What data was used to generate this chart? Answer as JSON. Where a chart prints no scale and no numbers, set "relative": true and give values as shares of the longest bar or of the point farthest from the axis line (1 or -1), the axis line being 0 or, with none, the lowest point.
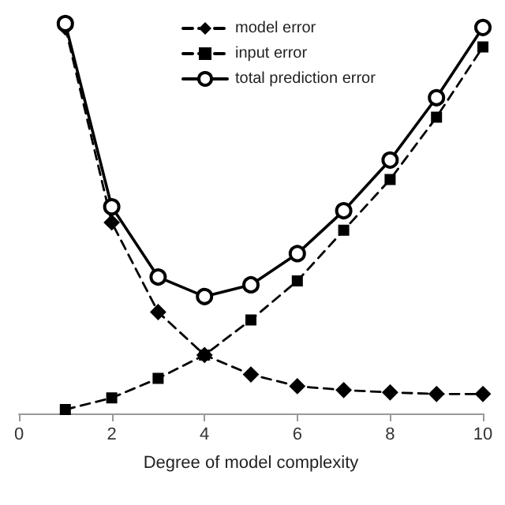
{
  "chart_data": {
    "type": "line",
    "relative": true,
    "xlabel": "Degree of model complexity",
    "x": [
      1,
      2,
      3,
      4,
      5,
      6,
      7,
      8,
      9,
      10
    ],
    "xlim": [
      0,
      10
    ],
    "xticks": [
      0,
      2,
      4,
      6,
      8,
      10
    ],
    "legend": "top",
    "grid": false,
    "series": [
      {
        "name": "model error",
        "color": "#000000",
        "marker": "diamond",
        "line_style": "dashed",
        "values": [
          0.99,
          0.49,
          0.26,
          0.15,
          0.1,
          0.07,
          0.06,
          0.054,
          0.05,
          0.05
        ]
      },
      {
        "name": "input error",
        "color": "#000000",
        "marker": "square",
        "line_style": "dashed",
        "values": [
          0.01,
          0.04,
          0.09,
          0.15,
          0.24,
          0.34,
          0.47,
          0.6,
          0.76,
          0.94
        ]
      },
      {
        "name": "total prediction error",
        "color": "#000000",
        "marker": "circle",
        "line_style": "solid",
        "values": [
          1.0,
          0.53,
          0.35,
          0.3,
          0.33,
          0.41,
          0.52,
          0.65,
          0.81,
          0.99
        ]
      }
    ]
  }
}
